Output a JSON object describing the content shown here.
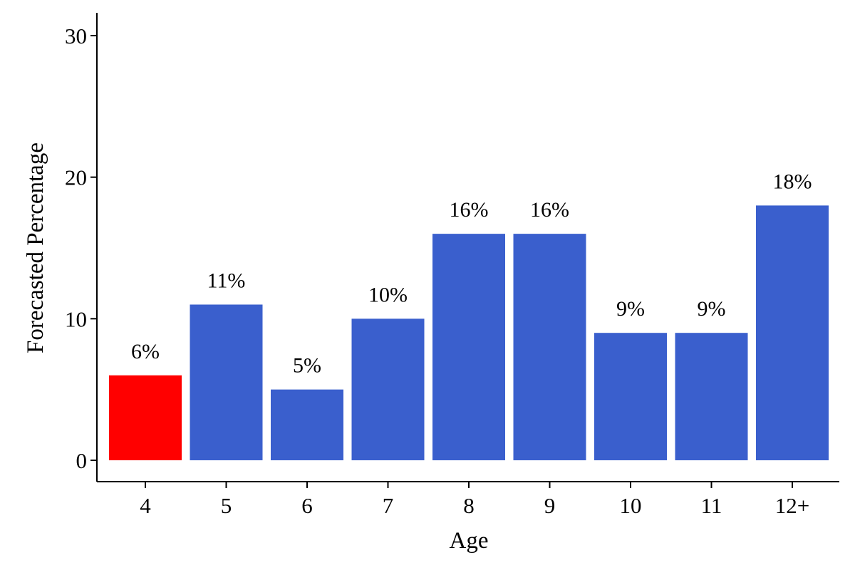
{
  "chart_data": {
    "type": "bar",
    "categories": [
      "4",
      "5",
      "6",
      "7",
      "8",
      "9",
      "10",
      "11",
      "12+"
    ],
    "values": [
      6,
      11,
      5,
      10,
      16,
      16,
      9,
      9,
      18
    ],
    "data_labels": [
      "6%",
      "11%",
      "5%",
      "10%",
      "16%",
      "16%",
      "9%",
      "9%",
      "18%"
    ],
    "highlight_index": 0,
    "colors": {
      "bar": "#3a5fcd",
      "highlight": "#ff0000"
    },
    "title": "",
    "xlabel": "Age",
    "ylabel": "Forecasted Percentage",
    "ylim": [
      0,
      30
    ],
    "yticks": [
      0,
      10,
      20,
      30
    ],
    "grid": false,
    "legend": "none"
  }
}
